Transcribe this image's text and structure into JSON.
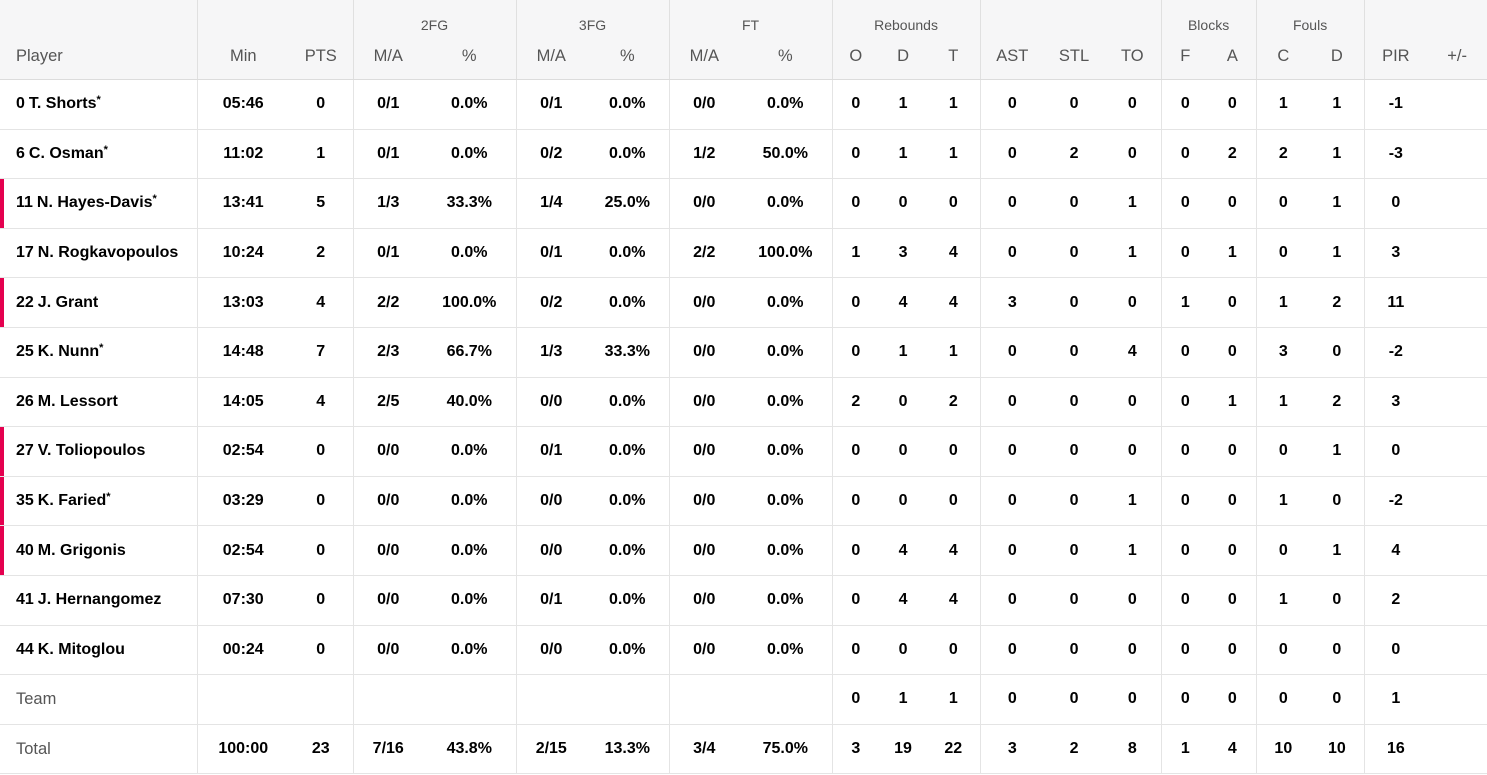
{
  "groups": {
    "fg2": "2FG",
    "fg3": "3FG",
    "ft": "FT",
    "rebounds": "Rebounds",
    "blocks": "Blocks",
    "fouls": "Fouls"
  },
  "columns": {
    "player": "Player",
    "min": "Min",
    "pts": "PTS",
    "fg2_ma": "M/A",
    "fg2_pct": "%",
    "fg3_ma": "M/A",
    "fg3_pct": "%",
    "ft_ma": "M/A",
    "ft_pct": "%",
    "reb_o": "O",
    "reb_d": "D",
    "reb_t": "T",
    "ast": "AST",
    "stl": "STL",
    "to": "TO",
    "blk_f": "F",
    "blk_a": "A",
    "fouls_c": "C",
    "fouls_d": "D",
    "pir": "PIR",
    "plusminus": "+/-"
  },
  "accent_color": "#e4004f",
  "players": [
    {
      "num": "0",
      "name": "T. Shorts",
      "star": "*",
      "min": "05:46",
      "pts": "0",
      "fg2_ma": "0/1",
      "fg2_pct": "0.0%",
      "fg3_ma": "0/1",
      "fg3_pct": "0.0%",
      "ft_ma": "0/0",
      "ft_pct": "0.0%",
      "reb_o": "0",
      "reb_d": "1",
      "reb_t": "1",
      "ast": "0",
      "stl": "0",
      "to": "0",
      "blk_f": "0",
      "blk_a": "0",
      "fouls_c": "1",
      "fouls_d": "1",
      "pir": "-1",
      "plusminus": ""
    },
    {
      "num": "6",
      "name": "C. Osman",
      "star": "*",
      "min": "11:02",
      "pts": "1",
      "fg2_ma": "0/1",
      "fg2_pct": "0.0%",
      "fg3_ma": "0/2",
      "fg3_pct": "0.0%",
      "ft_ma": "1/2",
      "ft_pct": "50.0%",
      "reb_o": "0",
      "reb_d": "1",
      "reb_t": "1",
      "ast": "0",
      "stl": "2",
      "to": "0",
      "blk_f": "0",
      "blk_a": "2",
      "fouls_c": "2",
      "fouls_d": "1",
      "pir": "-3",
      "plusminus": ""
    },
    {
      "num": "11",
      "name": "N. Hayes-Davis",
      "star": "*",
      "min": "13:41",
      "pts": "5",
      "fg2_ma": "1/3",
      "fg2_pct": "33.3%",
      "fg3_ma": "1/4",
      "fg3_pct": "25.0%",
      "ft_ma": "0/0",
      "ft_pct": "0.0%",
      "reb_o": "0",
      "reb_d": "0",
      "reb_t": "0",
      "ast": "0",
      "stl": "0",
      "to": "1",
      "blk_f": "0",
      "blk_a": "0",
      "fouls_c": "0",
      "fouls_d": "1",
      "pir": "0",
      "plusminus": ""
    },
    {
      "num": "17",
      "name": "N. Rogkavopoulos",
      "star": "",
      "min": "10:24",
      "pts": "2",
      "fg2_ma": "0/1",
      "fg2_pct": "0.0%",
      "fg3_ma": "0/1",
      "fg3_pct": "0.0%",
      "ft_ma": "2/2",
      "ft_pct": "100.0%",
      "reb_o": "1",
      "reb_d": "3",
      "reb_t": "4",
      "ast": "0",
      "stl": "0",
      "to": "1",
      "blk_f": "0",
      "blk_a": "1",
      "fouls_c": "0",
      "fouls_d": "1",
      "pir": "3",
      "plusminus": ""
    },
    {
      "num": "22",
      "name": "J. Grant",
      "star": "",
      "min": "13:03",
      "pts": "4",
      "fg2_ma": "2/2",
      "fg2_pct": "100.0%",
      "fg3_ma": "0/2",
      "fg3_pct": "0.0%",
      "ft_ma": "0/0",
      "ft_pct": "0.0%",
      "reb_o": "0",
      "reb_d": "4",
      "reb_t": "4",
      "ast": "3",
      "stl": "0",
      "to": "0",
      "blk_f": "1",
      "blk_a": "0",
      "fouls_c": "1",
      "fouls_d": "2",
      "pir": "11",
      "plusminus": ""
    },
    {
      "num": "25",
      "name": "K. Nunn",
      "star": "*",
      "min": "14:48",
      "pts": "7",
      "fg2_ma": "2/3",
      "fg2_pct": "66.7%",
      "fg3_ma": "1/3",
      "fg3_pct": "33.3%",
      "ft_ma": "0/0",
      "ft_pct": "0.0%",
      "reb_o": "0",
      "reb_d": "1",
      "reb_t": "1",
      "ast": "0",
      "stl": "0",
      "to": "4",
      "blk_f": "0",
      "blk_a": "0",
      "fouls_c": "3",
      "fouls_d": "0",
      "pir": "-2",
      "plusminus": ""
    },
    {
      "num": "26",
      "name": "M. Lessort",
      "star": "",
      "min": "14:05",
      "pts": "4",
      "fg2_ma": "2/5",
      "fg2_pct": "40.0%",
      "fg3_ma": "0/0",
      "fg3_pct": "0.0%",
      "ft_ma": "0/0",
      "ft_pct": "0.0%",
      "reb_o": "2",
      "reb_d": "0",
      "reb_t": "2",
      "ast": "0",
      "stl": "0",
      "to": "0",
      "blk_f": "0",
      "blk_a": "1",
      "fouls_c": "1",
      "fouls_d": "2",
      "pir": "3",
      "plusminus": ""
    },
    {
      "num": "27",
      "name": "V. Toliopoulos",
      "star": "",
      "min": "02:54",
      "pts": "0",
      "fg2_ma": "0/0",
      "fg2_pct": "0.0%",
      "fg3_ma": "0/1",
      "fg3_pct": "0.0%",
      "ft_ma": "0/0",
      "ft_pct": "0.0%",
      "reb_o": "0",
      "reb_d": "0",
      "reb_t": "0",
      "ast": "0",
      "stl": "0",
      "to": "0",
      "blk_f": "0",
      "blk_a": "0",
      "fouls_c": "0",
      "fouls_d": "1",
      "pir": "0",
      "plusminus": ""
    },
    {
      "num": "35",
      "name": "K. Faried",
      "star": "*",
      "min": "03:29",
      "pts": "0",
      "fg2_ma": "0/0",
      "fg2_pct": "0.0%",
      "fg3_ma": "0/0",
      "fg3_pct": "0.0%",
      "ft_ma": "0/0",
      "ft_pct": "0.0%",
      "reb_o": "0",
      "reb_d": "0",
      "reb_t": "0",
      "ast": "0",
      "stl": "0",
      "to": "1",
      "blk_f": "0",
      "blk_a": "0",
      "fouls_c": "1",
      "fouls_d": "0",
      "pir": "-2",
      "plusminus": ""
    },
    {
      "num": "40",
      "name": "M. Grigonis",
      "star": "",
      "min": "02:54",
      "pts": "0",
      "fg2_ma": "0/0",
      "fg2_pct": "0.0%",
      "fg3_ma": "0/0",
      "fg3_pct": "0.0%",
      "ft_ma": "0/0",
      "ft_pct": "0.0%",
      "reb_o": "0",
      "reb_d": "4",
      "reb_t": "4",
      "ast": "0",
      "stl": "0",
      "to": "1",
      "blk_f": "0",
      "blk_a": "0",
      "fouls_c": "0",
      "fouls_d": "1",
      "pir": "4",
      "plusminus": ""
    },
    {
      "num": "41",
      "name": "J. Hernangomez",
      "star": "",
      "min": "07:30",
      "pts": "0",
      "fg2_ma": "0/0",
      "fg2_pct": "0.0%",
      "fg3_ma": "0/1",
      "fg3_pct": "0.0%",
      "ft_ma": "0/0",
      "ft_pct": "0.0%",
      "reb_o": "0",
      "reb_d": "4",
      "reb_t": "4",
      "ast": "0",
      "stl": "0",
      "to": "0",
      "blk_f": "0",
      "blk_a": "0",
      "fouls_c": "1",
      "fouls_d": "0",
      "pir": "2",
      "plusminus": ""
    },
    {
      "num": "44",
      "name": "K. Mitoglou",
      "star": "",
      "min": "00:24",
      "pts": "0",
      "fg2_ma": "0/0",
      "fg2_pct": "0.0%",
      "fg3_ma": "0/0",
      "fg3_pct": "0.0%",
      "ft_ma": "0/0",
      "ft_pct": "0.0%",
      "reb_o": "0",
      "reb_d": "0",
      "reb_t": "0",
      "ast": "0",
      "stl": "0",
      "to": "0",
      "blk_f": "0",
      "blk_a": "0",
      "fouls_c": "0",
      "fouls_d": "0",
      "pir": "0",
      "plusminus": ""
    }
  ],
  "team": {
    "label": "Team",
    "min": "",
    "pts": "",
    "fg2_ma": "",
    "fg2_pct": "",
    "fg3_ma": "",
    "fg3_pct": "",
    "ft_ma": "",
    "ft_pct": "",
    "reb_o": "0",
    "reb_d": "1",
    "reb_t": "1",
    "ast": "0",
    "stl": "0",
    "to": "0",
    "blk_f": "0",
    "blk_a": "0",
    "fouls_c": "0",
    "fouls_d": "0",
    "pir": "1",
    "plusminus": ""
  },
  "total": {
    "label": "Total",
    "min": "100:00",
    "pts": "23",
    "fg2_ma": "7/16",
    "fg2_pct": "43.8%",
    "fg3_ma": "2/15",
    "fg3_pct": "13.3%",
    "ft_ma": "3/4",
    "ft_pct": "75.0%",
    "reb_o": "3",
    "reb_d": "19",
    "reb_t": "22",
    "ast": "3",
    "stl": "2",
    "to": "8",
    "blk_f": "1",
    "blk_a": "4",
    "fouls_c": "10",
    "fouls_d": "10",
    "pir": "16",
    "plusminus": ""
  }
}
